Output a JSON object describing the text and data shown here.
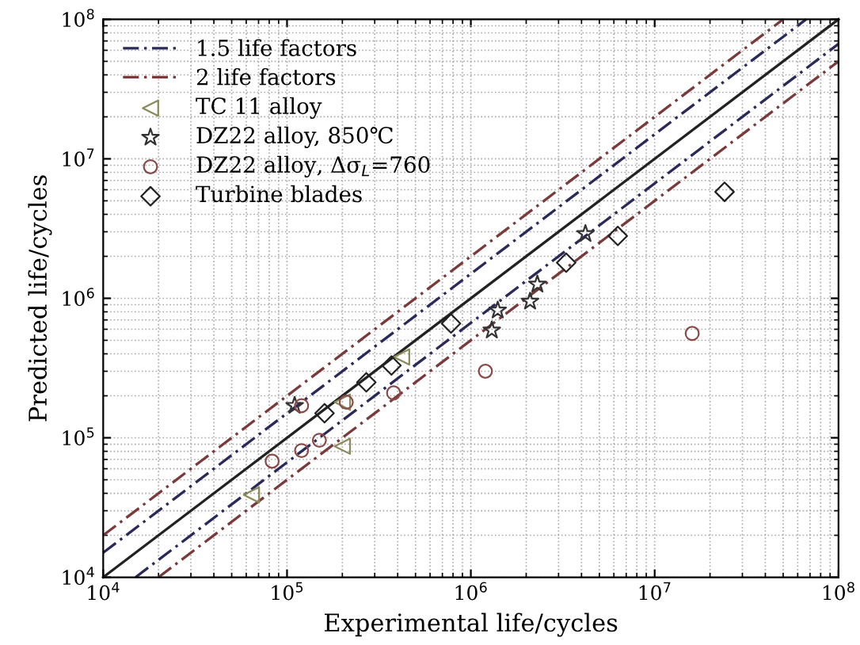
{
  "chart_data": {
    "type": "scatter",
    "xlabel": "Experimental life/cycles",
    "ylabel": "Predicted life/cycles",
    "log": "xy",
    "grid": true,
    "legend": "top left",
    "xlim": [
      10000,
      100000000
    ],
    "ylim": [
      10000,
      100000000
    ],
    "xticks": [
      {
        "value": 10000,
        "label": "10$^{4}$"
      },
      {
        "value": 100000,
        "label": "10$^{5}$"
      },
      {
        "value": 1000000,
        "label": "10$^{6}$"
      },
      {
        "value": 10000000,
        "label": "10$^{7}$"
      },
      {
        "value": 100000000,
        "label": "10$^{8}$"
      }
    ],
    "yticks": [
      {
        "value": 10000,
        "label": "10$^{4}$"
      },
      {
        "value": 100000,
        "label": "10$^{5}$"
      },
      {
        "value": 1000000,
        "label": "10$^{6}$"
      },
      {
        "value": 10000000,
        "label": "10$^{7}$"
      },
      {
        "value": 100000000,
        "label": "10$^{8}$"
      }
    ],
    "series": [
      {
        "name": "1.5 life factors",
        "type": "line",
        "line_style": "dashed",
        "marker": "none",
        "color": "#2a2a5a",
        "x": [
          10000,
          66670000,
          null,
          15000,
          100000000
        ],
        "values": [
          15000,
          100000000,
          null,
          10000,
          66670000
        ]
      },
      {
        "name": "2 life factors",
        "type": "line",
        "line_style": "dashed",
        "marker": "none",
        "color": "#7a3a3a",
        "x": [
          10000,
          50000000,
          null,
          20000,
          100000000
        ],
        "values": [
          20000,
          100000000,
          null,
          10000,
          50000000
        ]
      },
      {
        "type": "line",
        "line_style": "solid",
        "marker": "none",
        "color": "#222222",
        "x": [
          10000,
          100000000
        ],
        "values": [
          10000,
          100000000
        ]
      },
      {
        "name": "TC 11 alloy",
        "marker": "triangle",
        "color": "#8a8a5a",
        "x": [
          64000,
          200000,
          200000,
          420000
        ],
        "values": [
          39000,
          87000,
          180000,
          380000
        ]
      },
      {
        "name": "DZ22 alloy, 850℃",
        "marker": "star",
        "color": "#333333",
        "x": [
          110000,
          1300000,
          1400000,
          2100000,
          2300000,
          4200000
        ],
        "values": [
          170000,
          590000,
          820000,
          950000,
          1260000,
          2900000
        ]
      },
      {
        "name": "DZ22 alloy, Δσ$_{L}$=760",
        "marker": "circle",
        "color": "#8b4a4a",
        "x": [
          83000,
          120000,
          150000,
          120000,
          210000,
          380000,
          1200000,
          16000000
        ],
        "values": [
          68000,
          81000,
          96000,
          170000,
          180000,
          210000,
          300000,
          560000
        ]
      },
      {
        "name": "Turbine blades",
        "marker": "diamond",
        "color": "#222222",
        "x": [
          160000,
          270000,
          370000,
          780000,
          3300000,
          6300000,
          24000000
        ],
        "values": [
          150000,
          250000,
          330000,
          660000,
          1800000,
          2800000,
          5800000
        ]
      }
    ]
  }
}
